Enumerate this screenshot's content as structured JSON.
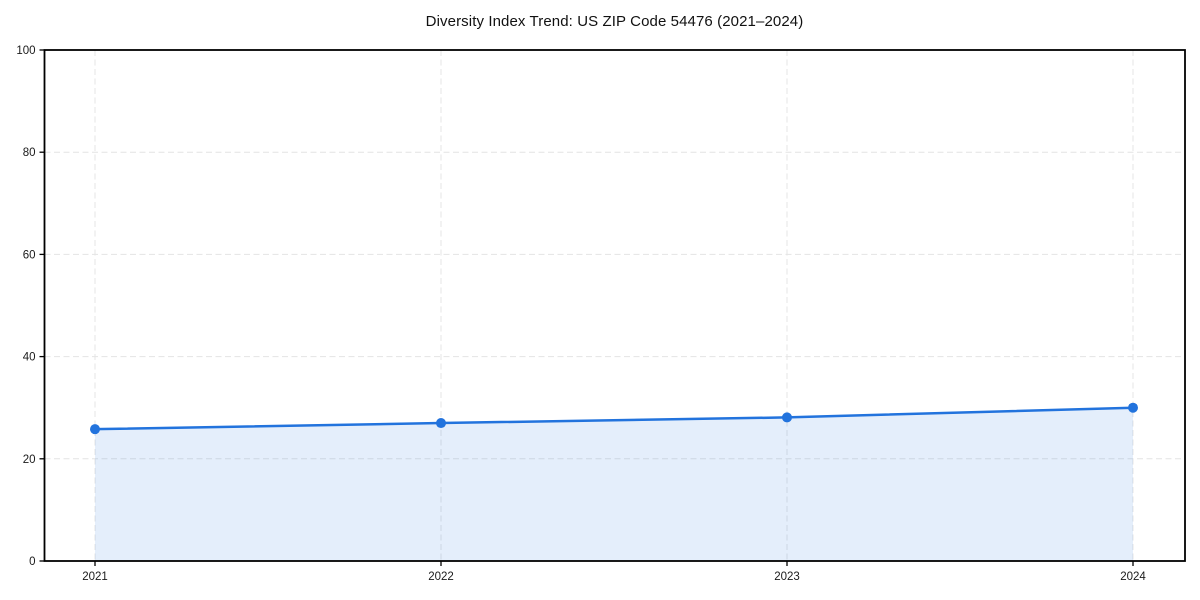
{
  "chart_data": {
    "type": "area",
    "title": "Diversity Index Trend: US ZIP Code 54476 (2021–2024)",
    "xlabel": "",
    "ylabel": "",
    "x": [
      2021,
      2022,
      2023,
      2024
    ],
    "xticks": [
      "2021",
      "2022",
      "2023",
      "2024"
    ],
    "yticks": [
      0,
      20,
      40,
      60,
      80,
      100
    ],
    "ylim": [
      0,
      100
    ],
    "grid": true,
    "grid_style": "dashed",
    "legend_position": "none",
    "series": [
      {
        "name": "Diversity Index",
        "values": [
          25.8,
          27.0,
          28.1,
          30.0
        ],
        "marker": "circle"
      }
    ],
    "colors": {
      "line": "#2273dd",
      "marker": "#2273dd",
      "fill_opacity": 0.12,
      "grid": "#e4e4e4",
      "spine": "#000000",
      "text": "#111111"
    }
  }
}
